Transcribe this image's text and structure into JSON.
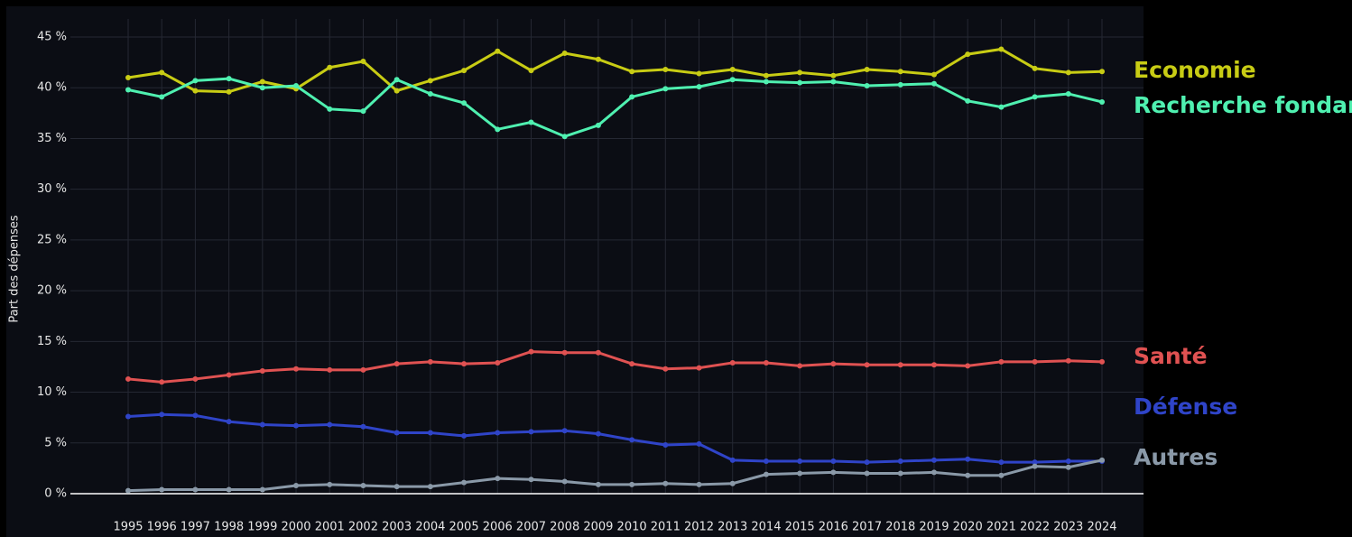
{
  "chart_data": {
    "type": "line",
    "y_label": "Part des dépenses",
    "categories": [
      "1995",
      "1996",
      "1997",
      "1998",
      "1999",
      "2000",
      "2001",
      "2002",
      "2003",
      "2004",
      "2005",
      "2006",
      "2007",
      "2008",
      "2009",
      "2010",
      "2011",
      "2012",
      "2013",
      "2014",
      "2015",
      "2016",
      "2017",
      "2018",
      "2019",
      "2020",
      "2021",
      "2022",
      "2023",
      "2024"
    ],
    "ylim": [
      0,
      45
    ],
    "yticks": [
      {
        "value": 0,
        "label": "0 %"
      },
      {
        "value": 5,
        "label": "5 %"
      },
      {
        "value": 10,
        "label": "10 %"
      },
      {
        "value": 15,
        "label": "15 %"
      },
      {
        "value": 20,
        "label": "20 %"
      },
      {
        "value": 25,
        "label": "25 %"
      },
      {
        "value": 30,
        "label": "30 %"
      },
      {
        "value": 35,
        "label": "35 %"
      },
      {
        "value": 40,
        "label": "40 %"
      },
      {
        "value": 45,
        "label": "45 %"
      }
    ],
    "grid": true,
    "series": [
      {
        "name": "Economie",
        "color": "#c8cc14",
        "values": [
          41.0,
          41.5,
          39.7,
          39.6,
          40.6,
          39.9,
          42.0,
          42.6,
          39.7,
          40.7,
          41.7,
          43.6,
          41.7,
          43.4,
          42.8,
          41.6,
          41.8,
          41.4,
          41.8,
          41.2,
          41.5,
          41.2,
          41.8,
          41.6,
          41.3,
          43.3,
          43.8,
          41.9,
          41.5,
          41.6
        ]
      },
      {
        "name": "Recherche fondamentale",
        "color": "#4ff0b0",
        "values": [
          39.8,
          39.1,
          40.7,
          40.9,
          40.0,
          40.2,
          37.9,
          37.7,
          40.8,
          39.4,
          38.5,
          35.9,
          36.6,
          35.2,
          36.3,
          39.1,
          39.9,
          40.1,
          40.8,
          40.6,
          40.5,
          40.6,
          40.2,
          40.3,
          40.4,
          38.7,
          38.1,
          39.1,
          39.4,
          38.6
        ]
      },
      {
        "name": "Santé",
        "color": "#e05252",
        "values": [
          11.3,
          11.0,
          11.3,
          11.7,
          12.1,
          12.3,
          12.2,
          12.2,
          12.8,
          13.0,
          12.8,
          12.9,
          14.0,
          13.9,
          13.9,
          12.8,
          12.3,
          12.4,
          12.9,
          12.9,
          12.6,
          12.8,
          12.7,
          12.7,
          12.7,
          12.6,
          13.0,
          13.0,
          13.1,
          13.0
        ]
      },
      {
        "name": "Défense",
        "color": "#2f44c8",
        "values": [
          7.6,
          7.8,
          7.7,
          7.1,
          6.8,
          6.7,
          6.8,
          6.6,
          6.0,
          6.0,
          5.7,
          6.0,
          6.1,
          6.2,
          5.9,
          5.3,
          4.8,
          4.9,
          3.3,
          3.2,
          3.2,
          3.2,
          3.1,
          3.2,
          3.3,
          3.4,
          3.1,
          3.1,
          3.2,
          3.2
        ]
      },
      {
        "name": "Autres",
        "color": "#8a99a8",
        "values": [
          0.3,
          0.4,
          0.4,
          0.4,
          0.4,
          0.8,
          0.9,
          0.8,
          0.7,
          0.7,
          1.1,
          1.5,
          1.4,
          1.2,
          0.9,
          0.9,
          1.0,
          0.9,
          1.0,
          1.9,
          2.0,
          2.1,
          2.0,
          2.0,
          2.1,
          1.8,
          1.8,
          2.7,
          2.6,
          3.3
        ]
      }
    ]
  }
}
